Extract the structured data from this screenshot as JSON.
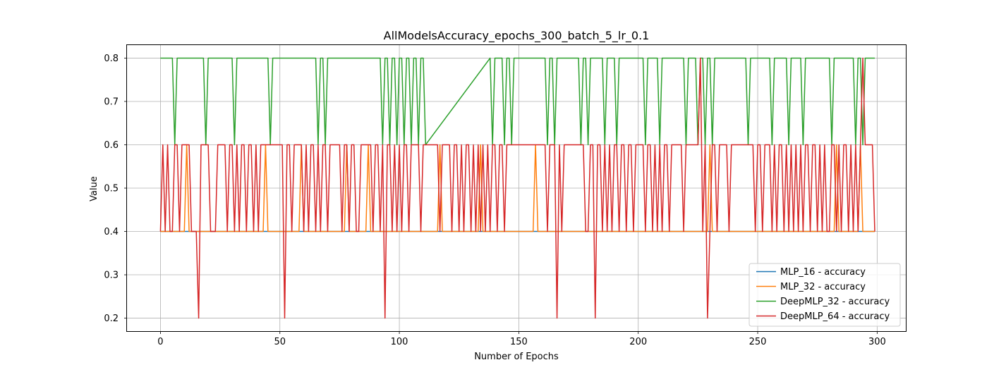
{
  "chart_data": {
    "type": "line",
    "title": "AllModelsAccuracy_epochs_300_batch_5_lr_0.1",
    "xlabel": "Number of Epochs",
    "ylabel": "Value",
    "xlim": [
      -14,
      312
    ],
    "ylim": [
      0.17,
      0.83
    ],
    "xticks": [
      0,
      50,
      100,
      150,
      200,
      250,
      300
    ],
    "yticks": [
      0.2,
      0.3,
      0.4,
      0.5,
      0.6,
      0.7,
      0.8
    ],
    "grid": true,
    "legend_position": "lower-right",
    "colors": [
      "#1f77b4",
      "#ff7f0e",
      "#2ca02c",
      "#d62728"
    ],
    "series": [
      {
        "name": "MLP_16 - accuracy",
        "color": "#1f77b4",
        "x": [
          0,
          299
        ],
        "values": [
          0.4,
          0.4
        ]
      },
      {
        "name": "MLP_32 - accuracy",
        "color": "#ff7f0e",
        "x": [
          0,
          10,
          11,
          12,
          43,
          44,
          45,
          58,
          59,
          60,
          77,
          78,
          79,
          86,
          87,
          88,
          116,
          117,
          118,
          133,
          134,
          135,
          156,
          157,
          158,
          229,
          230,
          231,
          282,
          283,
          284,
          292,
          293,
          294,
          299
        ],
        "values": [
          0.4,
          0.4,
          0.6,
          0.4,
          0.4,
          0.6,
          0.4,
          0.4,
          0.6,
          0.4,
          0.4,
          0.6,
          0.4,
          0.4,
          0.6,
          0.4,
          0.4,
          0.6,
          0.4,
          0.4,
          0.6,
          0.4,
          0.4,
          0.6,
          0.4,
          0.4,
          0.6,
          0.4,
          0.4,
          0.6,
          0.4,
          0.4,
          0.6,
          0.4,
          0.4
        ]
      },
      {
        "name": "DeepMLP_32 - accuracy",
        "color": "#2ca02c",
        "x": [
          0,
          5,
          6,
          7,
          18,
          19,
          20,
          30,
          31,
          32,
          45,
          46,
          47,
          65,
          66,
          67,
          68,
          69,
          70,
          92,
          93,
          94,
          95,
          96,
          97,
          98,
          99,
          100,
          101,
          102,
          103,
          104,
          105,
          106,
          107,
          108,
          109,
          110,
          111,
          138,
          139,
          140,
          143,
          144,
          145,
          146,
          147,
          148,
          161,
          162,
          163,
          164,
          165,
          166,
          175,
          176,
          177,
          178,
          179,
          180,
          185,
          186,
          187,
          190,
          191,
          192,
          202,
          203,
          204,
          208,
          209,
          210,
          219,
          220,
          221,
          224,
          225,
          226,
          227,
          228,
          229,
          230,
          231,
          232,
          245,
          246,
          247,
          255,
          256,
          257,
          262,
          263,
          264,
          268,
          269,
          270,
          280,
          281,
          282,
          290,
          291,
          292,
          293,
          294,
          295,
          296,
          299
        ],
        "values": [
          0.8,
          0.8,
          0.6,
          0.8,
          0.8,
          0.6,
          0.8,
          0.8,
          0.6,
          0.8,
          0.8,
          0.6,
          0.8,
          0.8,
          0.6,
          0.8,
          0.8,
          0.6,
          0.8,
          0.8,
          0.6,
          0.8,
          0.8,
          0.6,
          0.8,
          0.8,
          0.6,
          0.8,
          0.8,
          0.6,
          0.8,
          0.8,
          0.6,
          0.8,
          0.8,
          0.6,
          0.8,
          0.8,
          0.6,
          0.8,
          0.6,
          0.8,
          0.8,
          0.6,
          0.8,
          0.8,
          0.6,
          0.8,
          0.8,
          0.6,
          0.8,
          0.8,
          0.6,
          0.8,
          0.8,
          0.6,
          0.8,
          0.8,
          0.6,
          0.8,
          0.8,
          0.6,
          0.8,
          0.8,
          0.6,
          0.8,
          0.8,
          0.6,
          0.8,
          0.8,
          0.6,
          0.8,
          0.8,
          0.6,
          0.8,
          0.8,
          0.6,
          0.8,
          0.8,
          0.6,
          0.8,
          0.8,
          0.6,
          0.8,
          0.8,
          0.6,
          0.8,
          0.8,
          0.6,
          0.8,
          0.8,
          0.6,
          0.8,
          0.8,
          0.6,
          0.8,
          0.8,
          0.6,
          0.8,
          0.8,
          0.6,
          0.8,
          0.8,
          0.6,
          0.8,
          0.8,
          0.8
        ]
      },
      {
        "name": "DeepMLP_64 - accuracy",
        "color": "#d62728",
        "x": [
          0,
          1,
          2,
          3,
          4,
          5,
          6,
          7,
          8,
          9,
          10,
          11,
          12,
          13,
          14,
          15,
          16,
          17,
          18,
          19,
          20,
          21,
          22,
          23,
          24,
          25,
          26,
          27,
          28,
          29,
          30,
          31,
          32,
          33,
          34,
          35,
          36,
          37,
          38,
          39,
          40,
          41,
          42,
          43,
          44,
          45,
          46,
          47,
          48,
          49,
          50,
          51,
          52,
          53,
          54,
          55,
          56,
          57,
          58,
          59,
          60,
          61,
          62,
          63,
          64,
          65,
          66,
          67,
          68,
          69,
          70,
          71,
          72,
          73,
          74,
          75,
          76,
          77,
          78,
          79,
          80,
          81,
          82,
          83,
          84,
          85,
          86,
          87,
          88,
          89,
          90,
          91,
          92,
          93,
          94,
          95,
          96,
          97,
          98,
          99,
          100,
          101,
          102,
          103,
          104,
          105,
          106,
          107,
          108,
          109,
          110,
          111,
          112,
          113,
          114,
          115,
          116,
          117,
          118,
          119,
          120,
          121,
          122,
          123,
          124,
          125,
          126,
          127,
          128,
          129,
          130,
          131,
          132,
          133,
          134,
          135,
          136,
          137,
          138,
          139,
          140,
          141,
          142,
          143,
          144,
          145,
          146,
          147,
          148,
          149,
          150,
          151,
          152,
          153,
          154,
          155,
          156,
          157,
          158,
          159,
          160,
          161,
          162,
          163,
          164,
          165,
          166,
          167,
          168,
          169,
          170,
          171,
          172,
          173,
          174,
          175,
          176,
          177,
          178,
          179,
          180,
          181,
          182,
          183,
          184,
          185,
          186,
          187,
          188,
          189,
          190,
          191,
          192,
          193,
          194,
          195,
          196,
          197,
          198,
          199,
          200,
          201,
          202,
          203,
          204,
          205,
          206,
          207,
          208,
          209,
          210,
          211,
          212,
          213,
          214,
          215,
          216,
          217,
          218,
          219,
          220,
          221,
          222,
          223,
          224,
          225,
          226,
          227,
          228,
          229,
          230,
          231,
          232,
          233,
          234,
          235,
          236,
          237,
          238,
          239,
          240,
          241,
          242,
          243,
          244,
          245,
          246,
          247,
          248,
          249,
          250,
          251,
          252,
          253,
          254,
          255,
          256,
          257,
          258,
          259,
          260,
          261,
          262,
          263,
          264,
          265,
          266,
          267,
          268,
          269,
          270,
          271,
          272,
          273,
          274,
          275,
          276,
          277,
          278,
          279,
          280,
          281,
          282,
          283,
          284,
          285,
          286,
          287,
          288,
          289,
          290,
          291,
          292,
          293,
          294,
          295,
          296,
          297,
          298,
          299
        ],
        "values": [
          0.4,
          0.6,
          0.4,
          0.6,
          0.4,
          0.4,
          0.6,
          0.6,
          0.4,
          0.6,
          0.6,
          0.6,
          0.6,
          0.4,
          0.4,
          0.4,
          0.2,
          0.6,
          0.6,
          0.6,
          0.6,
          0.4,
          0.4,
          0.4,
          0.6,
          0.6,
          0.6,
          0.6,
          0.4,
          0.6,
          0.6,
          0.4,
          0.6,
          0.4,
          0.6,
          0.6,
          0.4,
          0.6,
          0.6,
          0.4,
          0.6,
          0.4,
          0.6,
          0.6,
          0.6,
          0.6,
          0.6,
          0.6,
          0.6,
          0.6,
          0.6,
          0.6,
          0.2,
          0.6,
          0.6,
          0.4,
          0.6,
          0.6,
          0.6,
          0.6,
          0.4,
          0.6,
          0.4,
          0.6,
          0.6,
          0.4,
          0.6,
          0.4,
          0.6,
          0.6,
          0.4,
          0.6,
          0.6,
          0.6,
          0.6,
          0.6,
          0.4,
          0.6,
          0.6,
          0.4,
          0.6,
          0.6,
          0.4,
          0.4,
          0.6,
          0.6,
          0.6,
          0.6,
          0.6,
          0.4,
          0.6,
          0.6,
          0.4,
          0.6,
          0.2,
          0.6,
          0.6,
          0.4,
          0.6,
          0.4,
          0.6,
          0.4,
          0.6,
          0.6,
          0.4,
          0.6,
          0.6,
          0.6,
          0.6,
          0.4,
          0.6,
          0.6,
          0.6,
          0.6,
          0.6,
          0.6,
          0.6,
          0.4,
          0.6,
          0.6,
          0.6,
          0.6,
          0.4,
          0.6,
          0.6,
          0.4,
          0.6,
          0.4,
          0.6,
          0.6,
          0.4,
          0.6,
          0.4,
          0.6,
          0.4,
          0.6,
          0.4,
          0.6,
          0.4,
          0.6,
          0.6,
          0.4,
          0.6,
          0.6,
          0.4,
          0.6,
          0.6,
          0.6,
          0.6,
          0.6,
          0.6,
          0.6,
          0.6,
          0.6,
          0.6,
          0.6,
          0.6,
          0.6,
          0.6,
          0.6,
          0.6,
          0.6,
          0.4,
          0.6,
          0.6,
          0.6,
          0.2,
          0.6,
          0.4,
          0.6,
          0.6,
          0.6,
          0.6,
          0.6,
          0.6,
          0.6,
          0.6,
          0.6,
          0.4,
          0.4,
          0.6,
          0.6,
          0.2,
          0.6,
          0.6,
          0.4,
          0.6,
          0.4,
          0.6,
          0.4,
          0.6,
          0.6,
          0.4,
          0.6,
          0.6,
          0.4,
          0.6,
          0.6,
          0.4,
          0.6,
          0.6,
          0.6,
          0.6,
          0.4,
          0.6,
          0.6,
          0.4,
          0.6,
          0.4,
          0.6,
          0.4,
          0.6,
          0.6,
          0.4,
          0.6,
          0.6,
          0.6,
          0.6,
          0.6,
          0.4,
          0.6,
          0.6,
          0.6,
          0.6,
          0.6,
          0.6,
          0.8,
          0.4,
          0.6,
          0.2,
          0.4,
          0.6,
          0.6,
          0.4,
          0.6,
          0.6,
          0.6,
          0.6,
          0.4,
          0.6,
          0.6,
          0.6,
          0.6,
          0.6,
          0.6,
          0.6,
          0.6,
          0.6,
          0.6,
          0.4,
          0.6,
          0.6,
          0.4,
          0.6,
          0.6,
          0.6,
          0.4,
          0.6,
          0.4,
          0.6,
          0.6,
          0.4,
          0.6,
          0.4,
          0.6,
          0.4,
          0.6,
          0.4,
          0.6,
          0.4,
          0.6,
          0.6,
          0.4,
          0.6,
          0.6,
          0.4,
          0.6,
          0.4,
          0.6,
          0.4,
          0.4,
          0.6,
          0.6,
          0.4,
          0.6,
          0.4,
          0.6,
          0.6,
          0.4,
          0.6,
          0.4,
          0.6,
          0.4,
          0.6,
          0.8,
          0.6,
          0.6,
          0.6,
          0.6,
          0.4
        ]
      }
    ]
  }
}
